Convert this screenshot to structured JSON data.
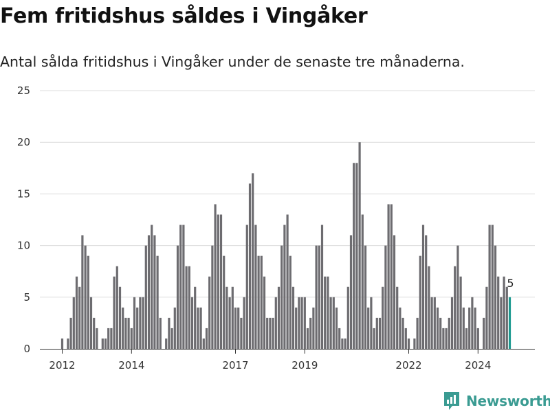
{
  "chart_data": {
    "type": "bar",
    "title": "Fem fritidshus såldes i Vingåker",
    "subtitle": "Antal sålda fritidshus i Vingåker under de senaste tre månaderna.",
    "ylim": [
      0,
      25
    ],
    "yticks": [
      0,
      5,
      10,
      15,
      20,
      25
    ],
    "xtick_labels": [
      "2012",
      "2014",
      "2017",
      "2019",
      "2022",
      "2024"
    ],
    "xtick_indices": [
      0,
      24,
      60,
      84,
      120,
      144
    ],
    "first_month": "2012-01",
    "last_month": "2024-09",
    "values": [
      1,
      0,
      1,
      3,
      5,
      7,
      6,
      11,
      10,
      9,
      5,
      3,
      2,
      0,
      1,
      1,
      2,
      2,
      7,
      8,
      6,
      4,
      3,
      3,
      2,
      5,
      4,
      5,
      5,
      10,
      11,
      12,
      11,
      9,
      3,
      0,
      1,
      3,
      2,
      4,
      10,
      12,
      12,
      8,
      8,
      5,
      6,
      4,
      4,
      1,
      2,
      7,
      10,
      14,
      13,
      13,
      9,
      6,
      5,
      6,
      4,
      4,
      3,
      5,
      12,
      16,
      17,
      12,
      9,
      9,
      7,
      3,
      3,
      3,
      5,
      6,
      10,
      12,
      13,
      9,
      6,
      4,
      5,
      5,
      5,
      2,
      3,
      4,
      10,
      10,
      12,
      7,
      7,
      5,
      5,
      4,
      2,
      1,
      1,
      6,
      11,
      18,
      18,
      20,
      13,
      10,
      4,
      5,
      2,
      3,
      3,
      6,
      10,
      14,
      14,
      11,
      6,
      4,
      3,
      2,
      1,
      0,
      1,
      3,
      9,
      12,
      11,
      8,
      5,
      5,
      4,
      3,
      2,
      2,
      3,
      5,
      8,
      10,
      7,
      4,
      2,
      4,
      5,
      4,
      2,
      0,
      3,
      6,
      12,
      12,
      10,
      7,
      5,
      7,
      6,
      5
    ],
    "highlight_last": true,
    "last_value_label": "5",
    "colors": {
      "bar": "#6d6c70",
      "highlight": "#1d9a90",
      "grid": "#dcdcdc"
    },
    "grid": true
  },
  "brand": {
    "name": "Newsworthy",
    "color": "#3a9b92",
    "icon": "bar-chart-logo-icon"
  }
}
